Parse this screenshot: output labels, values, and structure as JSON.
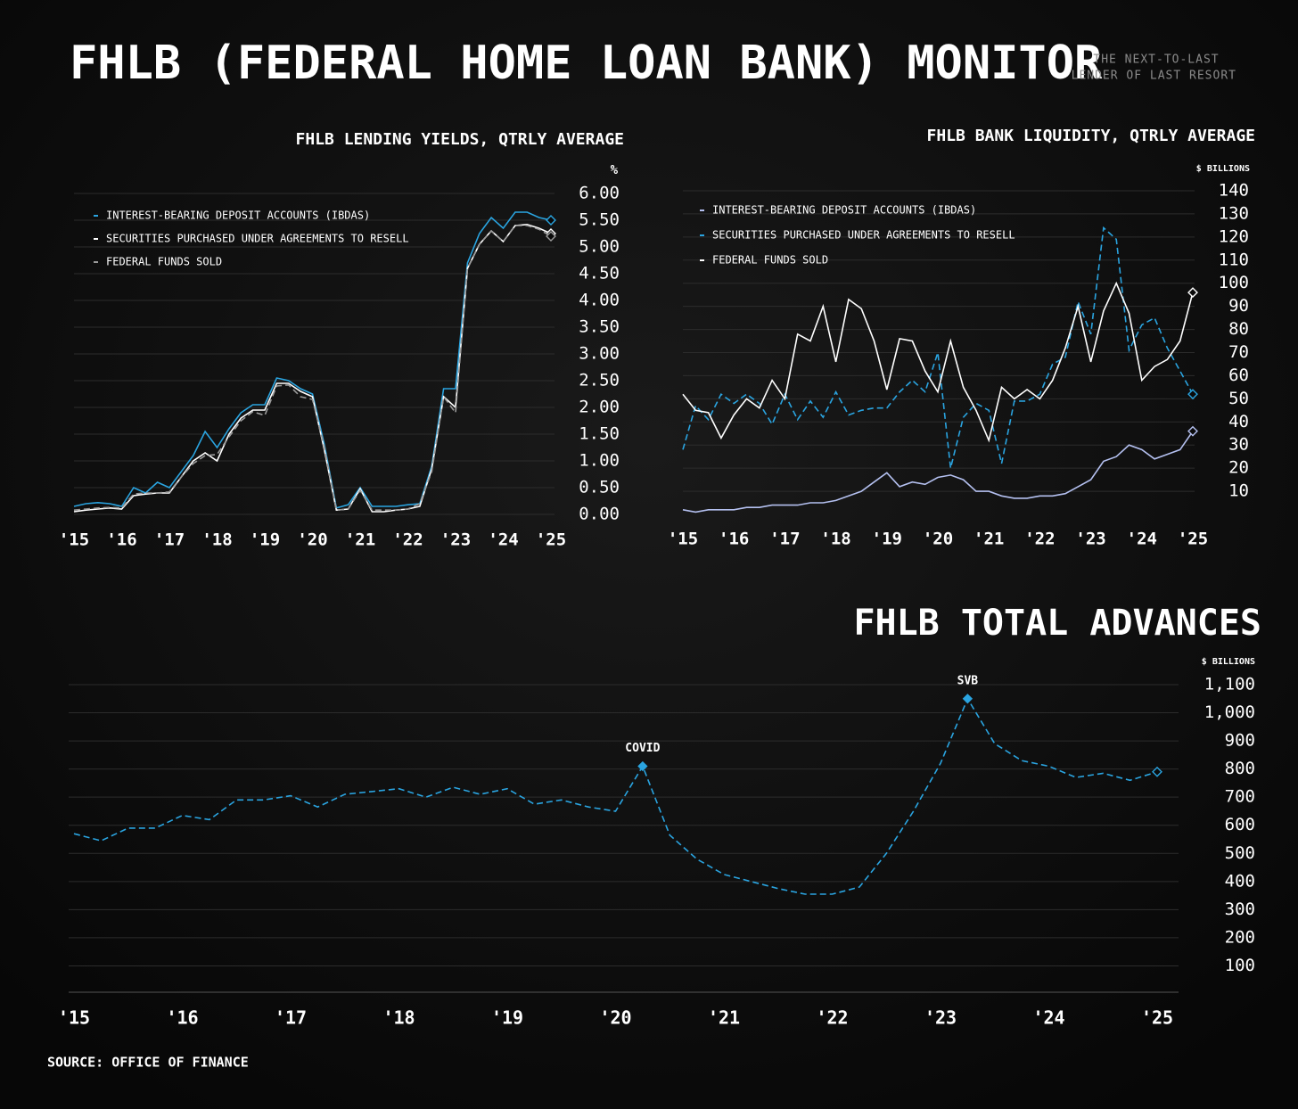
{
  "header": {
    "title": "FHLB (FEDERAL HOME LOAN BANK) MONITOR",
    "subtitle": [
      "THE NEXT-TO-LAST",
      "LENDER OF LAST RESORT"
    ]
  },
  "source": "SOURCE: OFFICE OF FINANCE",
  "chart_data": [
    {
      "type": "line",
      "title": "FHLB LENDING YIELDS, QTRLY AVERAGE",
      "y_label": "%",
      "x": [
        2015,
        2015.25,
        2015.5,
        2015.75,
        2016,
        2016.25,
        2016.5,
        2016.75,
        2017,
        2017.25,
        2017.5,
        2017.75,
        2018,
        2018.25,
        2018.5,
        2018.75,
        2019,
        2019.25,
        2019.5,
        2019.75,
        2020,
        2020.25,
        2020.5,
        2020.75,
        2021,
        2021.25,
        2021.5,
        2021.75,
        2022,
        2022.25,
        2022.5,
        2022.75,
        2023,
        2023.25,
        2023.5,
        2023.75,
        2024,
        2024.25,
        2024.5,
        2024.75,
        2025
      ],
      "series": [
        {
          "name": "INTEREST-BEARING DEPOSIT ACCOUNTS (IBDAS)",
          "color": "#2aa4e0",
          "dash": false,
          "values": [
            0.15,
            0.2,
            0.22,
            0.2,
            0.15,
            0.5,
            0.4,
            0.6,
            0.5,
            0.8,
            1.1,
            1.55,
            1.25,
            1.6,
            1.9,
            2.05,
            2.05,
            2.55,
            2.5,
            2.35,
            2.25,
            1.3,
            0.12,
            0.18,
            0.5,
            0.15,
            0.15,
            0.15,
            0.18,
            0.2,
            0.9,
            2.35,
            2.35,
            4.7,
            5.25,
            5.55,
            5.35,
            5.65,
            5.65,
            5.55,
            5.5
          ]
        },
        {
          "name": "SECURITIES PURCHASED UNDER AGREEMENTS TO RESELL",
          "color": "#ffffff",
          "dash": false,
          "values": [
            0.05,
            0.08,
            0.1,
            0.12,
            0.1,
            0.35,
            0.38,
            0.4,
            0.4,
            0.7,
            1.0,
            1.15,
            1.0,
            1.5,
            1.8,
            1.95,
            1.95,
            2.45,
            2.45,
            2.3,
            2.2,
            1.2,
            0.08,
            0.1,
            0.48,
            0.05,
            0.05,
            0.08,
            0.1,
            0.15,
            0.85,
            2.2,
            2.0,
            4.6,
            5.05,
            5.3,
            5.1,
            5.4,
            5.42,
            5.35,
            5.25
          ]
        },
        {
          "name": "FEDERAL FUNDS SOLD",
          "color": "#9a9a9a",
          "dash": true,
          "values": [
            0.08,
            0.1,
            0.12,
            0.13,
            0.12,
            0.38,
            0.4,
            0.4,
            0.42,
            0.7,
            0.95,
            1.1,
            1.12,
            1.45,
            1.75,
            1.92,
            1.85,
            2.4,
            2.42,
            2.2,
            2.15,
            1.25,
            0.08,
            0.1,
            0.45,
            0.08,
            0.08,
            0.08,
            0.1,
            0.2,
            0.8,
            2.2,
            1.9,
            4.6,
            5.05,
            5.3,
            5.1,
            5.4,
            5.4,
            5.33,
            5.2
          ]
        }
      ],
      "xlim": [
        2015,
        2025
      ],
      "xticks": [
        {
          "value": 2015,
          "label": "'15"
        },
        {
          "value": 2016,
          "label": "'16"
        },
        {
          "value": 2017,
          "label": "'17"
        },
        {
          "value": 2018,
          "label": "'18"
        },
        {
          "value": 2019,
          "label": "'19"
        },
        {
          "value": 2020,
          "label": "'20"
        },
        {
          "value": 2021,
          "label": "'21"
        },
        {
          "value": 2022,
          "label": "'22"
        },
        {
          "value": 2023,
          "label": "'23"
        },
        {
          "value": 2024,
          "label": "'24"
        },
        {
          "value": 2025,
          "label": "'25"
        }
      ],
      "ylim": [
        0,
        6
      ],
      "yticks": [
        {
          "value": 0,
          "label": "0.00"
        },
        {
          "value": 0.5,
          "label": "0.50"
        },
        {
          "value": 1,
          "label": "1.00"
        },
        {
          "value": 1.5,
          "label": "1.50"
        },
        {
          "value": 2,
          "label": "2.00"
        },
        {
          "value": 2.5,
          "label": "2.50"
        },
        {
          "value": 3,
          "label": "3.00"
        },
        {
          "value": 3.5,
          "label": "3.50"
        },
        {
          "value": 4,
          "label": "4.00"
        },
        {
          "value": 4.5,
          "label": "4.50"
        },
        {
          "value": 5,
          "label": "5.00"
        },
        {
          "value": 5.5,
          "label": "5.50"
        },
        {
          "value": 6,
          "label": "6.00"
        }
      ],
      "grid": true,
      "legend": "top-left"
    },
    {
      "type": "line",
      "title": "FHLB BANK LIQUIDITY, QTRLY AVERAGE",
      "y_label": "$ BILLIONS",
      "x": [
        2015,
        2015.25,
        2015.5,
        2015.75,
        2016,
        2016.25,
        2016.5,
        2016.75,
        2017,
        2017.25,
        2017.5,
        2017.75,
        2018,
        2018.25,
        2018.5,
        2018.75,
        2019,
        2019.25,
        2019.5,
        2019.75,
        2020,
        2020.25,
        2020.5,
        2020.75,
        2021,
        2021.25,
        2021.5,
        2021.75,
        2022,
        2022.25,
        2022.5,
        2022.75,
        2023,
        2023.25,
        2023.5,
        2023.75,
        2024,
        2024.25,
        2024.5,
        2024.75,
        2025
      ],
      "series": [
        {
          "name": "INTEREST-BEARING DEPOSIT ACCOUNTS (IBDAS)",
          "color": "#b4c0f0",
          "dash": false,
          "values": [
            2,
            1,
            2,
            2,
            2,
            3,
            3,
            4,
            4,
            4,
            5,
            5,
            6,
            8,
            10,
            14,
            18,
            12,
            14,
            13,
            16,
            17,
            15,
            10,
            10,
            8,
            7,
            7,
            8,
            8,
            9,
            12,
            15,
            23,
            25,
            30,
            28,
            24,
            26,
            28,
            36
          ]
        },
        {
          "name": "SECURITIES PURCHASED UNDER AGREEMENTS TO RESELL",
          "color": "#2aa4e0",
          "dash": true,
          "values": [
            28,
            47,
            41,
            52,
            48,
            52,
            48,
            39,
            52,
            41,
            49,
            42,
            53,
            43,
            45,
            46,
            46,
            53,
            58,
            53,
            70,
            20,
            42,
            48,
            45,
            22,
            49,
            49,
            52,
            65,
            68,
            92,
            78,
            124,
            119,
            71,
            82,
            85,
            72,
            62,
            52
          ]
        },
        {
          "name": "FEDERAL FUNDS SOLD",
          "color": "#ffffff",
          "dash": false,
          "values": [
            52,
            45,
            44,
            33,
            43,
            50,
            46,
            58,
            50,
            78,
            75,
            90,
            66,
            93,
            89,
            75,
            54,
            76,
            75,
            62,
            53,
            75,
            55,
            45,
            32,
            55,
            50,
            54,
            50,
            58,
            72,
            90,
            66,
            88,
            100,
            87,
            58,
            64,
            67,
            75,
            96
          ]
        }
      ],
      "xlim": [
        2015,
        2025
      ],
      "xticks": [
        {
          "value": 2015,
          "label": "'15"
        },
        {
          "value": 2016,
          "label": "'16"
        },
        {
          "value": 2017,
          "label": "'17"
        },
        {
          "value": 2018,
          "label": "'18"
        },
        {
          "value": 2019,
          "label": "'19"
        },
        {
          "value": 2020,
          "label": "'20"
        },
        {
          "value": 2021,
          "label": "'21"
        },
        {
          "value": 2022,
          "label": "'22"
        },
        {
          "value": 2023,
          "label": "'23"
        },
        {
          "value": 2024,
          "label": "'24"
        },
        {
          "value": 2025,
          "label": "'25"
        }
      ],
      "ylim": [
        0,
        140
      ],
      "yticks": [
        10,
        20,
        30,
        40,
        50,
        60,
        70,
        80,
        90,
        100,
        110,
        120,
        130,
        140
      ],
      "grid": true,
      "legend": "top-left"
    },
    {
      "type": "line",
      "title": "FHLB TOTAL ADVANCES",
      "y_label": "$ BILLIONS",
      "x": [
        2015,
        2015.25,
        2015.5,
        2015.75,
        2016,
        2016.25,
        2016.5,
        2016.75,
        2017,
        2017.25,
        2017.5,
        2017.75,
        2018,
        2018.25,
        2018.5,
        2018.75,
        2019,
        2019.25,
        2019.5,
        2019.75,
        2020,
        2020.25,
        2020.5,
        2020.75,
        2021,
        2021.25,
        2021.5,
        2021.75,
        2022,
        2022.25,
        2022.5,
        2022.75,
        2023,
        2023.25,
        2023.5,
        2023.75,
        2024,
        2024.25,
        2024.5,
        2024.75,
        2025
      ],
      "values": [
        570,
        545,
        590,
        590,
        635,
        620,
        690,
        690,
        705,
        665,
        710,
        720,
        730,
        700,
        735,
        710,
        730,
        675,
        690,
        665,
        650,
        810,
        565,
        480,
        425,
        400,
        375,
        355,
        355,
        380,
        500,
        650,
        820,
        1050,
        890,
        830,
        810,
        770,
        785,
        760,
        790
      ],
      "color": "#2aa4e0",
      "dash": true,
      "annotations": [
        {
          "text": "COVID",
          "x": 2020.25
        },
        {
          "text": "SVB",
          "x": 2023.25
        }
      ],
      "xlim": [
        2015,
        2025
      ],
      "xticks": [
        {
          "value": 2015,
          "label": "'15"
        },
        {
          "value": 2016,
          "label": "'16"
        },
        {
          "value": 2017,
          "label": "'17"
        },
        {
          "value": 2018,
          "label": "'18"
        },
        {
          "value": 2019,
          "label": "'19"
        },
        {
          "value": 2020,
          "label": "'20"
        },
        {
          "value": 2021,
          "label": "'21"
        },
        {
          "value": 2022,
          "label": "'22"
        },
        {
          "value": 2023,
          "label": "'23"
        },
        {
          "value": 2024,
          "label": "'24"
        },
        {
          "value": 2025,
          "label": "'25"
        }
      ],
      "ylim": [
        0,
        1100
      ],
      "yticks": [
        100,
        200,
        300,
        400,
        500,
        600,
        700,
        800,
        900,
        {
          "value": 1000,
          "label": "1,000"
        },
        {
          "value": 1100,
          "label": "1,100"
        }
      ],
      "grid": true
    }
  ]
}
